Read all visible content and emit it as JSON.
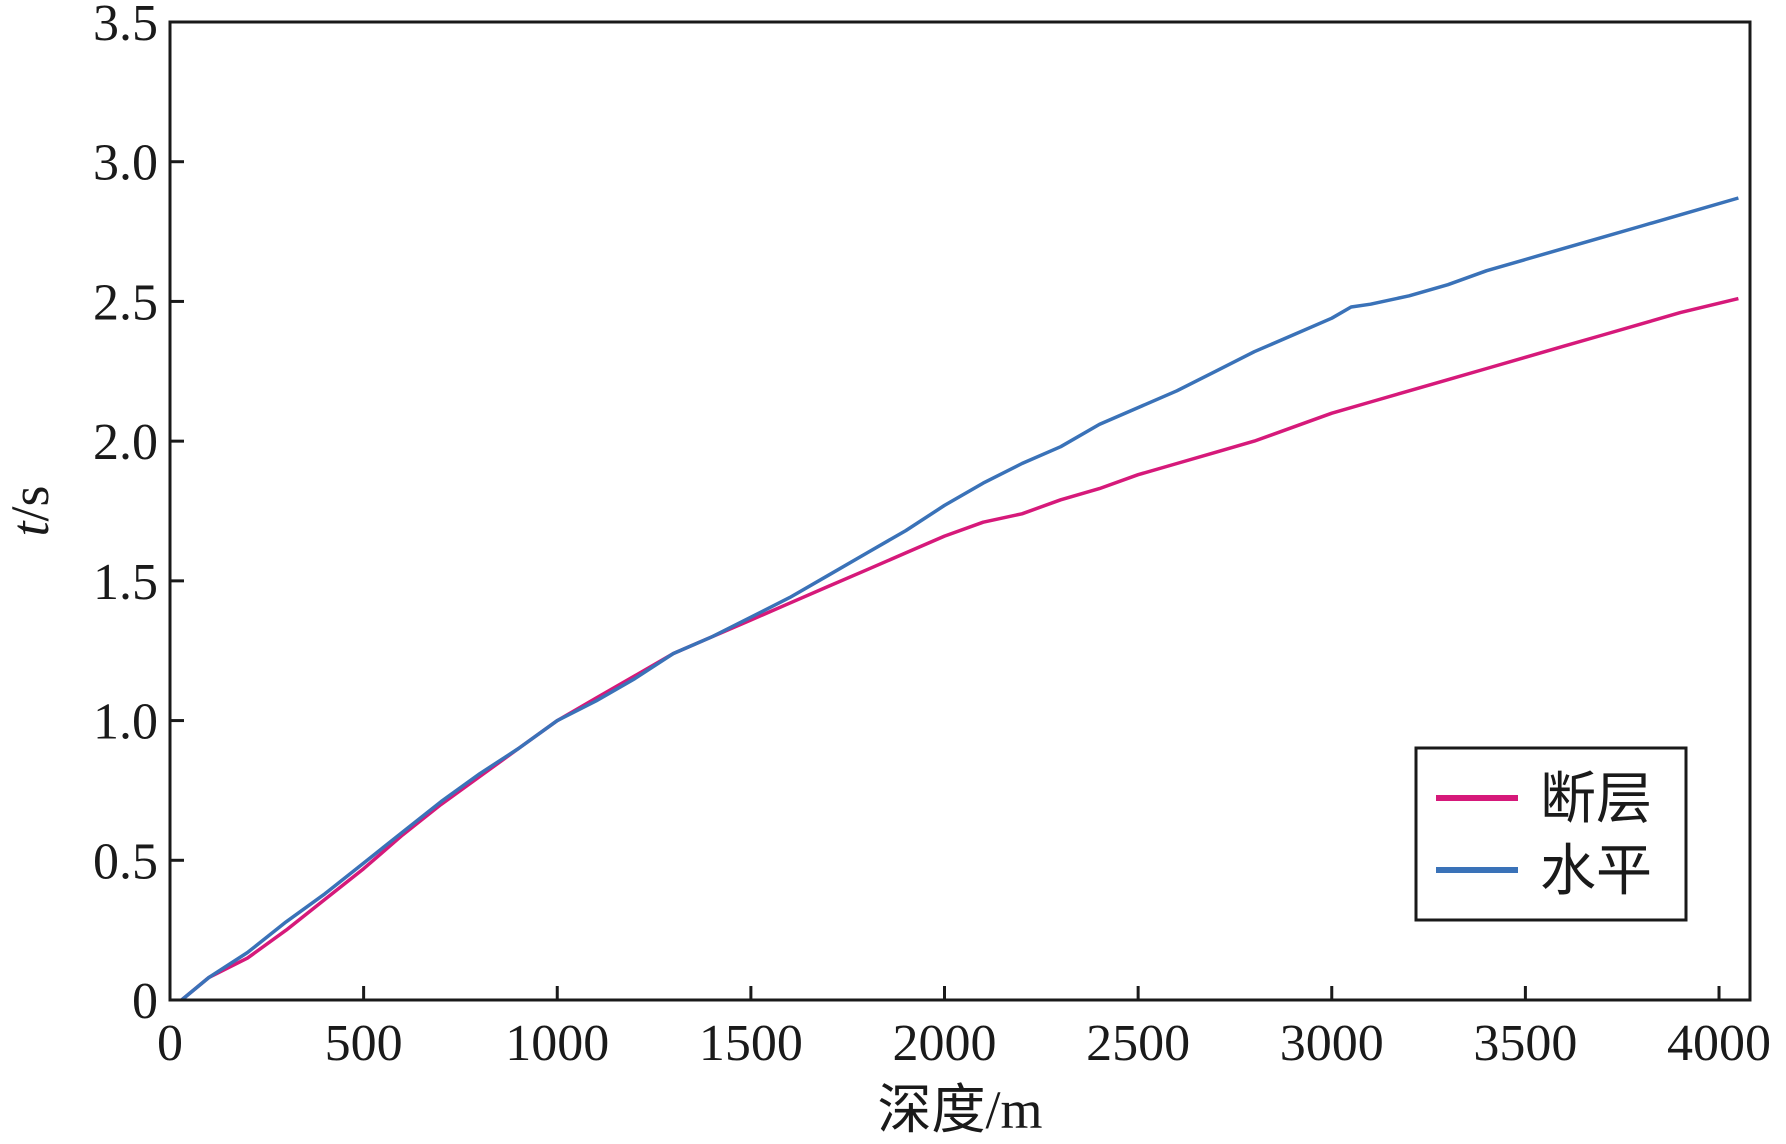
{
  "chart_data": {
    "type": "line",
    "xlabel": "深度/m",
    "ylabel_italic": "t",
    "ylabel_rest": "/s",
    "xlim": [
      0,
      4080
    ],
    "ylim": [
      0,
      3.5
    ],
    "x_ticks": [
      {
        "value": 0,
        "label": "0"
      },
      {
        "value": 500,
        "label": "500"
      },
      {
        "value": 1000,
        "label": "1000"
      },
      {
        "value": 1500,
        "label": "1500"
      },
      {
        "value": 2000,
        "label": "2000"
      },
      {
        "value": 2500,
        "label": "2500"
      },
      {
        "value": 3000,
        "label": "3000"
      },
      {
        "value": 3500,
        "label": "3500"
      },
      {
        "value": 4000,
        "label": "4000"
      }
    ],
    "y_ticks": [
      {
        "value": 0,
        "label": "0"
      },
      {
        "value": 0.5,
        "label": "0.5"
      },
      {
        "value": 1.0,
        "label": "1.0"
      },
      {
        "value": 1.5,
        "label": "1.5"
      },
      {
        "value": 2.0,
        "label": "2.0"
      },
      {
        "value": 2.5,
        "label": "2.5"
      },
      {
        "value": 3.0,
        "label": "3.0"
      },
      {
        "value": 3.5,
        "label": "3.5"
      }
    ],
    "grid": false,
    "legend_position": "bottom-right",
    "series": [
      {
        "name": "断层",
        "color": "#d6197a",
        "x": [
          30,
          100,
          200,
          300,
          400,
          500,
          600,
          700,
          800,
          900,
          1000,
          1100,
          1200,
          1300,
          1400,
          1500,
          1600,
          1700,
          1800,
          1900,
          2000,
          2100,
          2200,
          2300,
          2400,
          2500,
          2600,
          2700,
          2800,
          2900,
          3000,
          3100,
          3200,
          3300,
          3400,
          3500,
          3600,
          3700,
          3800,
          3900,
          4050
        ],
        "y": [
          0.0,
          0.08,
          0.15,
          0.25,
          0.36,
          0.47,
          0.59,
          0.7,
          0.8,
          0.9,
          1.0,
          1.08,
          1.16,
          1.24,
          1.3,
          1.36,
          1.42,
          1.48,
          1.54,
          1.6,
          1.66,
          1.71,
          1.74,
          1.79,
          1.83,
          1.88,
          1.92,
          1.96,
          2.0,
          2.05,
          2.1,
          2.14,
          2.18,
          2.22,
          2.26,
          2.3,
          2.34,
          2.38,
          2.42,
          2.46,
          2.51
        ]
      },
      {
        "name": "水平",
        "color": "#3a72b8",
        "x": [
          30,
          100,
          200,
          300,
          400,
          500,
          600,
          700,
          800,
          900,
          1000,
          1100,
          1200,
          1300,
          1400,
          1500,
          1600,
          1700,
          1800,
          1900,
          2000,
          2100,
          2200,
          2300,
          2400,
          2500,
          2600,
          2700,
          2800,
          2900,
          3000,
          3050,
          3100,
          3200,
          3300,
          3400,
          3500,
          3600,
          3700,
          3800,
          3900,
          4050
        ],
        "y": [
          0.0,
          0.08,
          0.17,
          0.28,
          0.38,
          0.49,
          0.6,
          0.71,
          0.81,
          0.9,
          1.0,
          1.07,
          1.15,
          1.24,
          1.3,
          1.37,
          1.44,
          1.52,
          1.6,
          1.68,
          1.77,
          1.85,
          1.92,
          1.98,
          2.06,
          2.12,
          2.18,
          2.25,
          2.32,
          2.38,
          2.44,
          2.48,
          2.49,
          2.52,
          2.56,
          2.61,
          2.65,
          2.69,
          2.73,
          2.77,
          2.81,
          2.87
        ]
      }
    ]
  }
}
